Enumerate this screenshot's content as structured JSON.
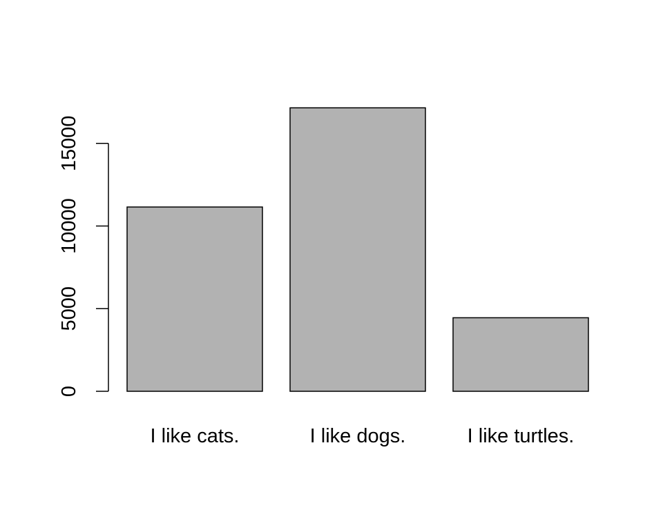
{
  "chart_data": {
    "type": "bar",
    "title": "",
    "xlabel": "",
    "ylabel": "",
    "categories": [
      "I like cats.",
      "I like dogs.",
      "I like turtles."
    ],
    "values": [
      11150,
      17150,
      4450
    ],
    "ylim": [
      0,
      17150
    ],
    "yticks": [
      0,
      5000,
      10000,
      15000
    ],
    "ytick_labels": [
      "0",
      "5000",
      "10000",
      "15000"
    ],
    "bar_color": "#b2b2b2",
    "grid": false,
    "legend": "none"
  }
}
